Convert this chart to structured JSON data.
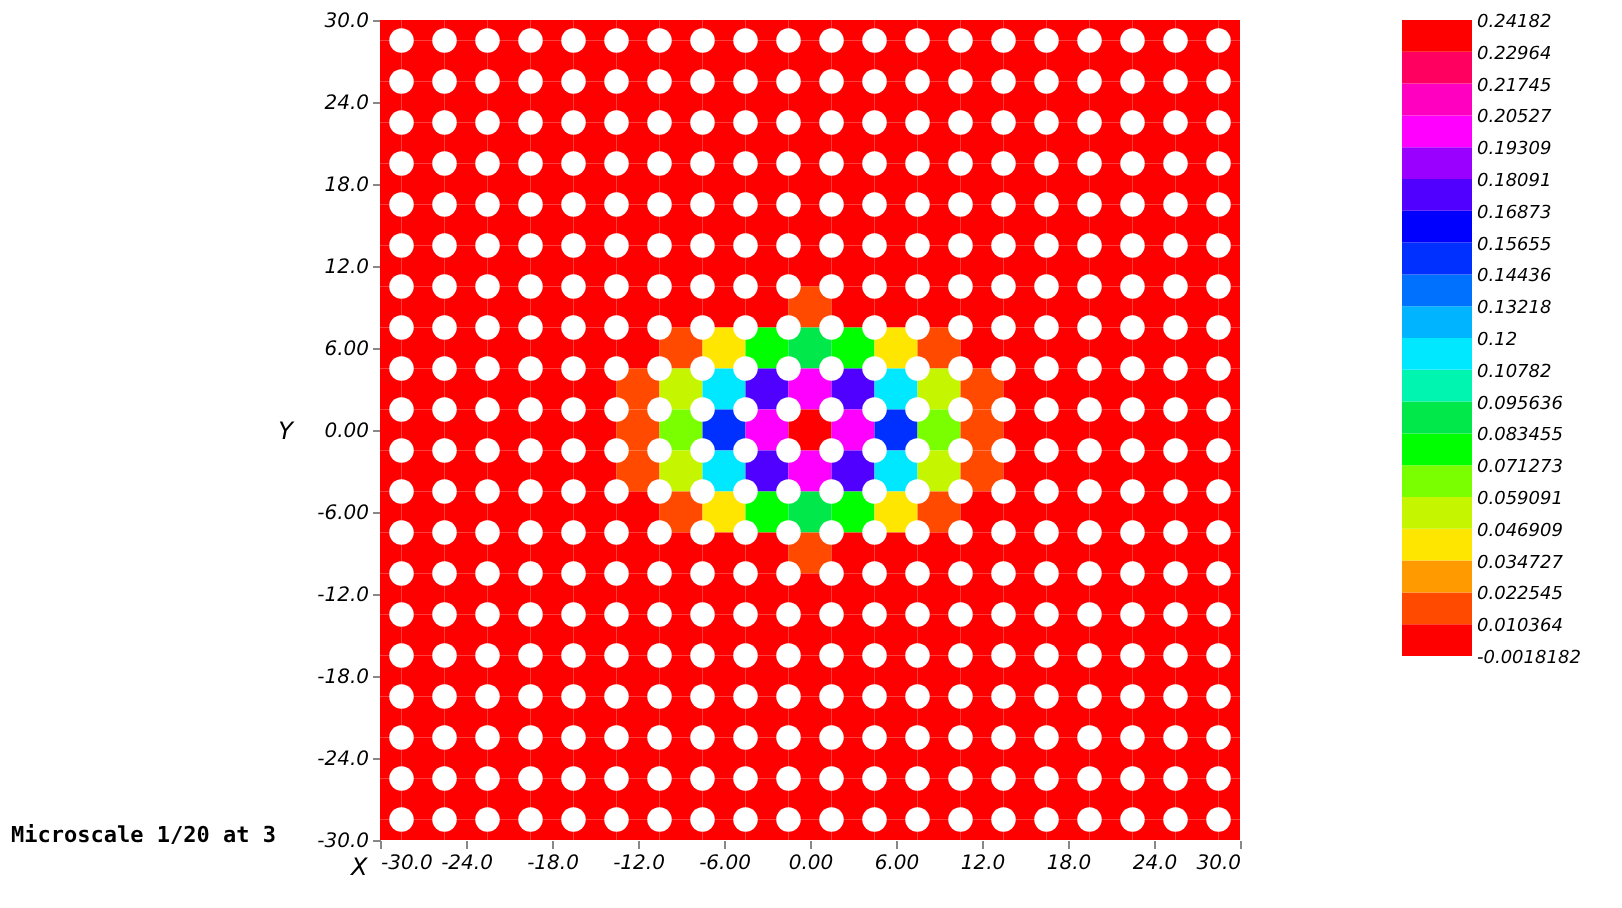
{
  "chart_data": {
    "type": "heatmap",
    "xlabel": "X",
    "ylabel": "Y",
    "annotations": [
      "Microscale 1/20 at 3"
    ],
    "x": [
      -30,
      -27,
      -24,
      -21,
      -18,
      -15,
      -12,
      -9,
      -6,
      -3,
      0,
      3,
      6,
      9,
      12,
      15,
      18,
      21,
      24,
      27,
      30
    ],
    "y": [
      30,
      27,
      24,
      21,
      18,
      15,
      12,
      9,
      6,
      3,
      0,
      -3,
      -6,
      -9,
      -12,
      -15,
      -18,
      -21,
      -24,
      -27,
      -30
    ],
    "cells": [
      [
        0,
        0,
        0,
        0,
        0,
        0,
        0,
        0,
        0,
        0,
        0,
        0,
        0,
        0,
        0,
        0,
        0,
        0,
        0,
        0,
        0
      ],
      [
        0,
        0,
        0,
        0,
        0,
        0,
        0,
        0,
        0,
        0,
        0,
        0,
        0,
        0,
        0,
        0,
        0,
        0,
        0,
        0,
        0
      ],
      [
        0,
        0,
        0,
        0,
        0,
        0,
        0,
        0,
        0,
        0,
        0,
        0,
        0,
        0,
        0,
        0,
        0,
        0,
        0,
        0,
        0
      ],
      [
        0,
        0,
        0,
        0,
        0,
        0,
        0,
        0,
        0,
        0,
        0,
        0,
        0,
        0,
        0,
        0,
        0,
        0,
        0,
        0,
        0
      ],
      [
        0,
        0,
        0,
        0,
        0,
        0,
        0,
        0,
        0,
        0,
        0,
        0,
        0,
        0,
        0,
        0,
        0,
        0,
        0,
        0,
        0
      ],
      [
        0,
        0,
        0,
        0,
        0,
        0,
        0,
        0,
        0,
        0,
        0,
        0,
        0,
        0,
        0,
        0,
        0,
        0,
        0,
        0,
        0
      ],
      [
        0,
        0,
        0,
        0,
        0,
        0,
        0,
        0,
        0,
        0,
        0,
        0,
        0,
        0,
        0,
        0,
        0,
        0,
        0,
        0,
        0
      ],
      [
        0,
        0,
        0,
        0,
        0,
        0,
        0,
        0,
        0,
        0,
        0.015,
        0,
        0,
        0,
        0,
        0,
        0,
        0,
        0,
        0,
        0
      ],
      [
        0,
        0,
        0,
        0,
        0,
        0,
        0,
        0.015,
        0.04,
        0.08,
        0.09,
        0.08,
        0.04,
        0.015,
        0,
        0,
        0,
        0,
        0,
        0,
        0
      ],
      [
        0,
        0,
        0,
        0,
        0,
        0,
        0.015,
        0.05,
        0.12,
        0.18,
        0.2,
        0.18,
        0.12,
        0.05,
        0.015,
        0,
        0,
        0,
        0,
        0,
        0
      ],
      [
        0,
        0,
        0,
        0,
        0,
        0,
        0.02,
        0.06,
        0.15,
        0.2,
        0.23,
        0.2,
        0.15,
        0.06,
        0.02,
        0,
        0,
        0,
        0,
        0,
        0
      ],
      [
        0,
        0,
        0,
        0,
        0,
        0,
        0.015,
        0.05,
        0.12,
        0.18,
        0.2,
        0.18,
        0.12,
        0.05,
        0.015,
        0,
        0,
        0,
        0,
        0,
        0
      ],
      [
        0,
        0,
        0,
        0,
        0,
        0,
        0,
        0.015,
        0.04,
        0.08,
        0.09,
        0.08,
        0.04,
        0.015,
        0,
        0,
        0,
        0,
        0,
        0,
        0
      ],
      [
        0,
        0,
        0,
        0,
        0,
        0,
        0,
        0,
        0,
        0,
        0.015,
        0,
        0,
        0,
        0,
        0,
        0,
        0,
        0,
        0,
        0
      ],
      [
        0,
        0,
        0,
        0,
        0,
        0,
        0,
        0,
        0,
        0,
        0,
        0,
        0,
        0,
        0,
        0,
        0,
        0,
        0,
        0,
        0
      ],
      [
        0,
        0,
        0,
        0,
        0,
        0,
        0,
        0,
        0,
        0,
        0,
        0,
        0,
        0,
        0,
        0,
        0,
        0,
        0,
        0,
        0
      ],
      [
        0,
        0,
        0,
        0,
        0,
        0,
        0,
        0,
        0,
        0,
        0,
        0,
        0,
        0,
        0,
        0,
        0,
        0,
        0,
        0,
        0
      ],
      [
        0,
        0,
        0,
        0,
        0,
        0,
        0,
        0,
        0,
        0,
        0,
        0,
        0,
        0,
        0,
        0,
        0,
        0,
        0,
        0,
        0
      ],
      [
        0,
        0,
        0,
        0,
        0,
        0,
        0,
        0,
        0,
        0,
        0,
        0,
        0,
        0,
        0,
        0,
        0,
        0,
        0,
        0,
        0
      ],
      [
        0,
        0,
        0,
        0,
        0,
        0,
        0,
        0,
        0,
        0,
        0,
        0,
        0,
        0,
        0,
        0,
        0,
        0,
        0,
        0,
        0
      ],
      [
        0,
        0,
        0,
        0,
        0,
        0,
        0,
        0,
        0,
        0,
        0,
        0,
        0,
        0,
        0,
        0,
        0,
        0,
        0,
        0,
        0
      ]
    ],
    "xlim": [
      -30,
      30
    ],
    "ylim": [
      -30,
      30
    ],
    "xticks": [
      {
        "value": -30,
        "label": "-30.0"
      },
      {
        "value": -24,
        "label": "-24.0"
      },
      {
        "value": -18,
        "label": "-18.0"
      },
      {
        "value": -12,
        "label": "-12.0"
      },
      {
        "value": -6,
        "label": "-6.00"
      },
      {
        "value": 0,
        "label": "0.00"
      },
      {
        "value": 6,
        "label": "6.00"
      },
      {
        "value": 12,
        "label": "12.0"
      },
      {
        "value": 18,
        "label": "18.0"
      },
      {
        "value": 24,
        "label": "24.0"
      },
      {
        "value": 30,
        "label": "30.0"
      }
    ],
    "yticks": [
      {
        "value": -30,
        "label": "-30.0"
      },
      {
        "value": -24,
        "label": "-24.0"
      },
      {
        "value": -18,
        "label": "-18.0"
      },
      {
        "value": -12,
        "label": "-12.0"
      },
      {
        "value": -6,
        "label": "-6.00"
      },
      {
        "value": 0,
        "label": "0.00"
      },
      {
        "value": 6,
        "label": "6.00"
      },
      {
        "value": 12,
        "label": "12.0"
      },
      {
        "value": 18,
        "label": "18.0"
      },
      {
        "value": 24,
        "label": "24.0"
      },
      {
        "value": 30,
        "label": "30.0"
      }
    ],
    "clim": [
      -0.0018182,
      0.24182
    ],
    "cticks": [
      -0.0018182,
      0.010364,
      0.022545,
      0.034727,
      0.046909,
      0.059091,
      0.071273,
      0.083455,
      0.095636,
      0.10782,
      0.12,
      0.13218,
      0.14436,
      0.15655,
      0.16873,
      0.18091,
      0.19309,
      0.20527,
      0.21745,
      0.22964,
      0.24182
    ],
    "colors": [
      "#ff0000",
      "#ff4a00",
      "#ff9a00",
      "#ffe600",
      "#c6f500",
      "#7aff00",
      "#00ff00",
      "#00e84a",
      "#00f5b0",
      "#00e8ff",
      "#00b4ff",
      "#0070ff",
      "#0030ff",
      "#0000ff",
      "#5000ff",
      "#9a00ff",
      "#ff00ff",
      "#ff00c0",
      "#ff0060",
      "#ff0000"
    ],
    "grid": false,
    "series": [
      {
        "type": "scatter",
        "color": "#ffffff",
        "marker": "circle",
        "x": [
          -28.5,
          -25.5,
          -22.5,
          -19.5,
          -16.5,
          -13.5,
          -10.5,
          -7.5,
          -4.5,
          -1.5,
          1.5,
          4.5,
          7.5,
          10.5,
          13.5,
          16.5,
          19.5,
          22.5,
          25.5,
          28.5,
          -28.5,
          -25.5,
          -22.5,
          -19.5,
          -16.5,
          -13.5,
          -10.5,
          -7.5,
          -4.5,
          -1.5,
          1.5,
          4.5,
          7.5,
          10.5,
          13.5,
          16.5,
          19.5,
          22.5,
          25.5,
          28.5,
          -28.5,
          -25.5,
          -22.5,
          -19.5,
          -16.5,
          -13.5,
          -10.5,
          -7.5,
          -4.5,
          -1.5,
          1.5,
          4.5,
          7.5,
          10.5,
          13.5,
          16.5,
          19.5,
          22.5,
          25.5,
          28.5,
          -28.5,
          -25.5,
          -22.5,
          -19.5,
          -16.5,
          -13.5,
          -10.5,
          -7.5,
          -4.5,
          -1.5,
          1.5,
          4.5,
          7.5,
          10.5,
          13.5,
          16.5,
          19.5,
          22.5,
          25.5,
          28.5,
          -28.5,
          -25.5,
          -22.5,
          -19.5,
          -16.5,
          -13.5,
          -10.5,
          -7.5,
          -4.5,
          -1.5,
          1.5,
          4.5,
          7.5,
          10.5,
          13.5,
          16.5,
          19.5,
          22.5,
          25.5,
          28.5,
          -28.5,
          -25.5,
          -22.5,
          -19.5,
          -16.5,
          -13.5,
          -10.5,
          -7.5,
          -4.5,
          -1.5,
          1.5,
          4.5,
          7.5,
          10.5,
          13.5,
          16.5,
          19.5,
          22.5,
          25.5,
          28.5,
          -28.5,
          -25.5,
          -22.5,
          -19.5,
          -16.5,
          -13.5,
          -10.5,
          -7.5,
          -4.5,
          -1.5,
          1.5,
          4.5,
          7.5,
          10.5,
          13.5,
          16.5,
          19.5,
          22.5,
          25.5,
          28.5,
          -28.5,
          -25.5,
          -22.5,
          -19.5,
          -16.5,
          -13.5,
          -10.5,
          -7.5,
          -4.5,
          -1.5,
          1.5,
          4.5,
          7.5,
          10.5,
          13.5,
          16.5,
          19.5,
          22.5,
          25.5,
          28.5,
          -28.5,
          -25.5,
          -22.5,
          -19.5,
          -16.5,
          -13.5,
          -10.5,
          -7.5,
          -4.5,
          -1.5,
          1.5,
          4.5,
          7.5,
          10.5,
          13.5,
          16.5,
          19.5,
          22.5,
          25.5,
          28.5,
          -28.5,
          -25.5,
          -22.5,
          -19.5,
          -16.5,
          -13.5,
          -10.5,
          -7.5,
          -4.5,
          -1.5,
          1.5,
          4.5,
          7.5,
          10.5,
          13.5,
          16.5,
          19.5,
          22.5,
          25.5,
          28.5,
          -28.5,
          -25.5,
          -22.5,
          -19.5,
          -16.5,
          -13.5,
          -10.5,
          -7.5,
          -4.5,
          -1.5,
          1.5,
          4.5,
          7.5,
          10.5,
          13.5,
          16.5,
          19.5,
          22.5,
          25.5,
          28.5,
          -28.5,
          -25.5,
          -22.5,
          -19.5,
          -16.5,
          -13.5,
          -10.5,
          -7.5,
          -4.5,
          -1.5,
          1.5,
          4.5,
          7.5,
          10.5,
          13.5,
          16.5,
          19.5,
          22.5,
          25.5,
          28.5,
          -28.5,
          -25.5,
          -22.5,
          -19.5,
          -16.5,
          -13.5,
          -10.5,
          -7.5,
          -4.5,
          -1.5,
          1.5,
          4.5,
          7.5,
          10.5,
          13.5,
          16.5,
          19.5,
          22.5,
          25.5,
          28.5,
          -28.5,
          -25.5,
          -22.5,
          -19.5,
          -16.5,
          -13.5,
          -10.5,
          -7.5,
          -4.5,
          -1.5,
          1.5,
          4.5,
          7.5,
          10.5,
          13.5,
          16.5,
          19.5,
          22.5,
          25.5,
          28.5,
          -28.5,
          -25.5,
          -22.5,
          -19.5,
          -16.5,
          -13.5,
          -10.5,
          -7.5,
          -4.5,
          -1.5,
          1.5,
          4.5,
          7.5,
          10.5,
          13.5,
          16.5,
          19.5,
          22.5,
          25.5,
          28.5,
          -28.5,
          -25.5,
          -22.5,
          -19.5,
          -16.5,
          -13.5,
          -10.5,
          -7.5,
          -4.5,
          -1.5,
          1.5,
          4.5,
          7.5,
          10.5,
          13.5,
          16.5,
          19.5,
          22.5,
          25.5,
          28.5,
          -28.5,
          -25.5,
          -22.5,
          -19.5,
          -16.5,
          -13.5,
          -10.5,
          -7.5,
          -4.5,
          -1.5,
          1.5,
          4.5,
          7.5,
          10.5,
          13.5,
          16.5,
          19.5,
          22.5,
          25.5,
          28.5,
          -28.5,
          -25.5,
          -22.5,
          -19.5,
          -16.5,
          -13.5,
          -10.5,
          -7.5,
          -4.5,
          -1.5,
          1.5,
          4.5,
          7.5,
          10.5,
          13.5,
          16.5,
          19.5,
          22.5,
          25.5,
          28.5,
          -28.5,
          -25.5,
          -22.5,
          -19.5,
          -16.5,
          -13.5,
          -10.5,
          -7.5,
          -4.5,
          -1.5,
          1.5,
          4.5,
          7.5,
          10.5,
          13.5,
          16.5,
          19.5,
          22.5,
          25.5,
          28.5,
          -28.5,
          -25.5,
          -22.5,
          -19.5,
          -16.5,
          -13.5,
          -10.5,
          -7.5,
          -4.5,
          -1.5,
          1.5,
          4.5,
          7.5,
          10.5,
          13.5,
          16.5,
          19.5,
          22.5,
          25.5,
          28.5
        ],
        "values": [
          28.5,
          28.5,
          28.5,
          28.5,
          28.5,
          28.5,
          28.5,
          28.5,
          28.5,
          28.5,
          28.5,
          28.5,
          28.5,
          28.5,
          28.5,
          28.5,
          28.5,
          28.5,
          28.5,
          28.5,
          25.5,
          25.5,
          25.5,
          25.5,
          25.5,
          25.5,
          25.5,
          25.5,
          25.5,
          25.5,
          25.5,
          25.5,
          25.5,
          25.5,
          25.5,
          25.5,
          25.5,
          25.5,
          25.5,
          25.5,
          22.5,
          22.5,
          22.5,
          22.5,
          22.5,
          22.5,
          22.5,
          22.5,
          22.5,
          22.5,
          22.5,
          22.5,
          22.5,
          22.5,
          22.5,
          22.5,
          22.5,
          22.5,
          22.5,
          22.5,
          19.5,
          19.5,
          19.5,
          19.5,
          19.5,
          19.5,
          19.5,
          19.5,
          19.5,
          19.5,
          19.5,
          19.5,
          19.5,
          19.5,
          19.5,
          19.5,
          19.5,
          19.5,
          19.5,
          19.5,
          16.5,
          16.5,
          16.5,
          16.5,
          16.5,
          16.5,
          16.5,
          16.5,
          16.5,
          16.5,
          16.5,
          16.5,
          16.5,
          16.5,
          16.5,
          16.5,
          16.5,
          16.5,
          16.5,
          16.5,
          13.5,
          13.5,
          13.5,
          13.5,
          13.5,
          13.5,
          13.5,
          13.5,
          13.5,
          13.5,
          13.5,
          13.5,
          13.5,
          13.5,
          13.5,
          13.5,
          13.5,
          13.5,
          13.5,
          13.5,
          10.5,
          10.5,
          10.5,
          10.5,
          10.5,
          10.5,
          10.5,
          10.5,
          10.5,
          10.5,
          10.5,
          10.5,
          10.5,
          10.5,
          10.5,
          10.5,
          10.5,
          10.5,
          10.5,
          10.5,
          7.5,
          7.5,
          7.5,
          7.5,
          7.5,
          7.5,
          7.5,
          7.5,
          7.5,
          7.5,
          7.5,
          7.5,
          7.5,
          7.5,
          7.5,
          7.5,
          7.5,
          7.5,
          7.5,
          7.5,
          4.5,
          4.5,
          4.5,
          4.5,
          4.5,
          4.5,
          4.5,
          4.5,
          4.5,
          4.5,
          4.5,
          4.5,
          4.5,
          4.5,
          4.5,
          4.5,
          4.5,
          4.5,
          4.5,
          4.5,
          1.5,
          1.5,
          1.5,
          1.5,
          1.5,
          1.5,
          1.5,
          1.5,
          1.5,
          1.5,
          1.5,
          1.5,
          1.5,
          1.5,
          1.5,
          1.5,
          1.5,
          1.5,
          1.5,
          1.5,
          -1.5,
          -1.5,
          -1.5,
          -1.5,
          -1.5,
          -1.5,
          -1.5,
          -1.5,
          -1.5,
          -1.5,
          -1.5,
          -1.5,
          -1.5,
          -1.5,
          -1.5,
          -1.5,
          -1.5,
          -1.5,
          -1.5,
          -1.5,
          -4.5,
          -4.5,
          -4.5,
          -4.5,
          -4.5,
          -4.5,
          -4.5,
          -4.5,
          -4.5,
          -4.5,
          -4.5,
          -4.5,
          -4.5,
          -4.5,
          -4.5,
          -4.5,
          -4.5,
          -4.5,
          -4.5,
          -4.5,
          -7.5,
          -7.5,
          -7.5,
          -7.5,
          -7.5,
          -7.5,
          -7.5,
          -7.5,
          -7.5,
          -7.5,
          -7.5,
          -7.5,
          -7.5,
          -7.5,
          -7.5,
          -7.5,
          -7.5,
          -7.5,
          -7.5,
          -7.5,
          -10.5,
          -10.5,
          -10.5,
          -10.5,
          -10.5,
          -10.5,
          -10.5,
          -10.5,
          -10.5,
          -10.5,
          -10.5,
          -10.5,
          -10.5,
          -10.5,
          -10.5,
          -10.5,
          -10.5,
          -10.5,
          -10.5,
          -10.5,
          -13.5,
          -13.5,
          -13.5,
          -13.5,
          -13.5,
          -13.5,
          -13.5,
          -13.5,
          -13.5,
          -13.5,
          -13.5,
          -13.5,
          -13.5,
          -13.5,
          -13.5,
          -13.5,
          -13.5,
          -13.5,
          -13.5,
          -13.5,
          -16.5,
          -16.5,
          -16.5,
          -16.5,
          -16.5,
          -16.5,
          -16.5,
          -16.5,
          -16.5,
          -16.5,
          -16.5,
          -16.5,
          -16.5,
          -16.5,
          -16.5,
          -16.5,
          -16.5,
          -16.5,
          -16.5,
          -16.5,
          -19.5,
          -19.5,
          -19.5,
          -19.5,
          -19.5,
          -19.5,
          -19.5,
          -19.5,
          -19.5,
          -19.5,
          -19.5,
          -19.5,
          -19.5,
          -19.5,
          -19.5,
          -19.5,
          -19.5,
          -19.5,
          -19.5,
          -19.5,
          -22.5,
          -22.5,
          -22.5,
          -22.5,
          -22.5,
          -22.5,
          -22.5,
          -22.5,
          -22.5,
          -22.5,
          -22.5,
          -22.5,
          -22.5,
          -22.5,
          -22.5,
          -22.5,
          -22.5,
          -22.5,
          -22.5,
          -22.5,
          -25.5,
          -25.5,
          -25.5,
          -25.5,
          -25.5,
          -25.5,
          -25.5,
          -25.5,
          -25.5,
          -25.5,
          -25.5,
          -25.5,
          -25.5,
          -25.5,
          -25.5,
          -25.5,
          -25.5,
          -25.5,
          -25.5,
          -25.5,
          -28.5,
          -28.5,
          -28.5,
          -28.5,
          -28.5,
          -28.5,
          -28.5,
          -28.5,
          -28.5,
          -28.5,
          -28.5,
          -28.5,
          -28.5,
          -28.5,
          -28.5,
          -28.5,
          -28.5,
          -28.5,
          -28.5,
          -28.5
        ]
      }
    ]
  }
}
